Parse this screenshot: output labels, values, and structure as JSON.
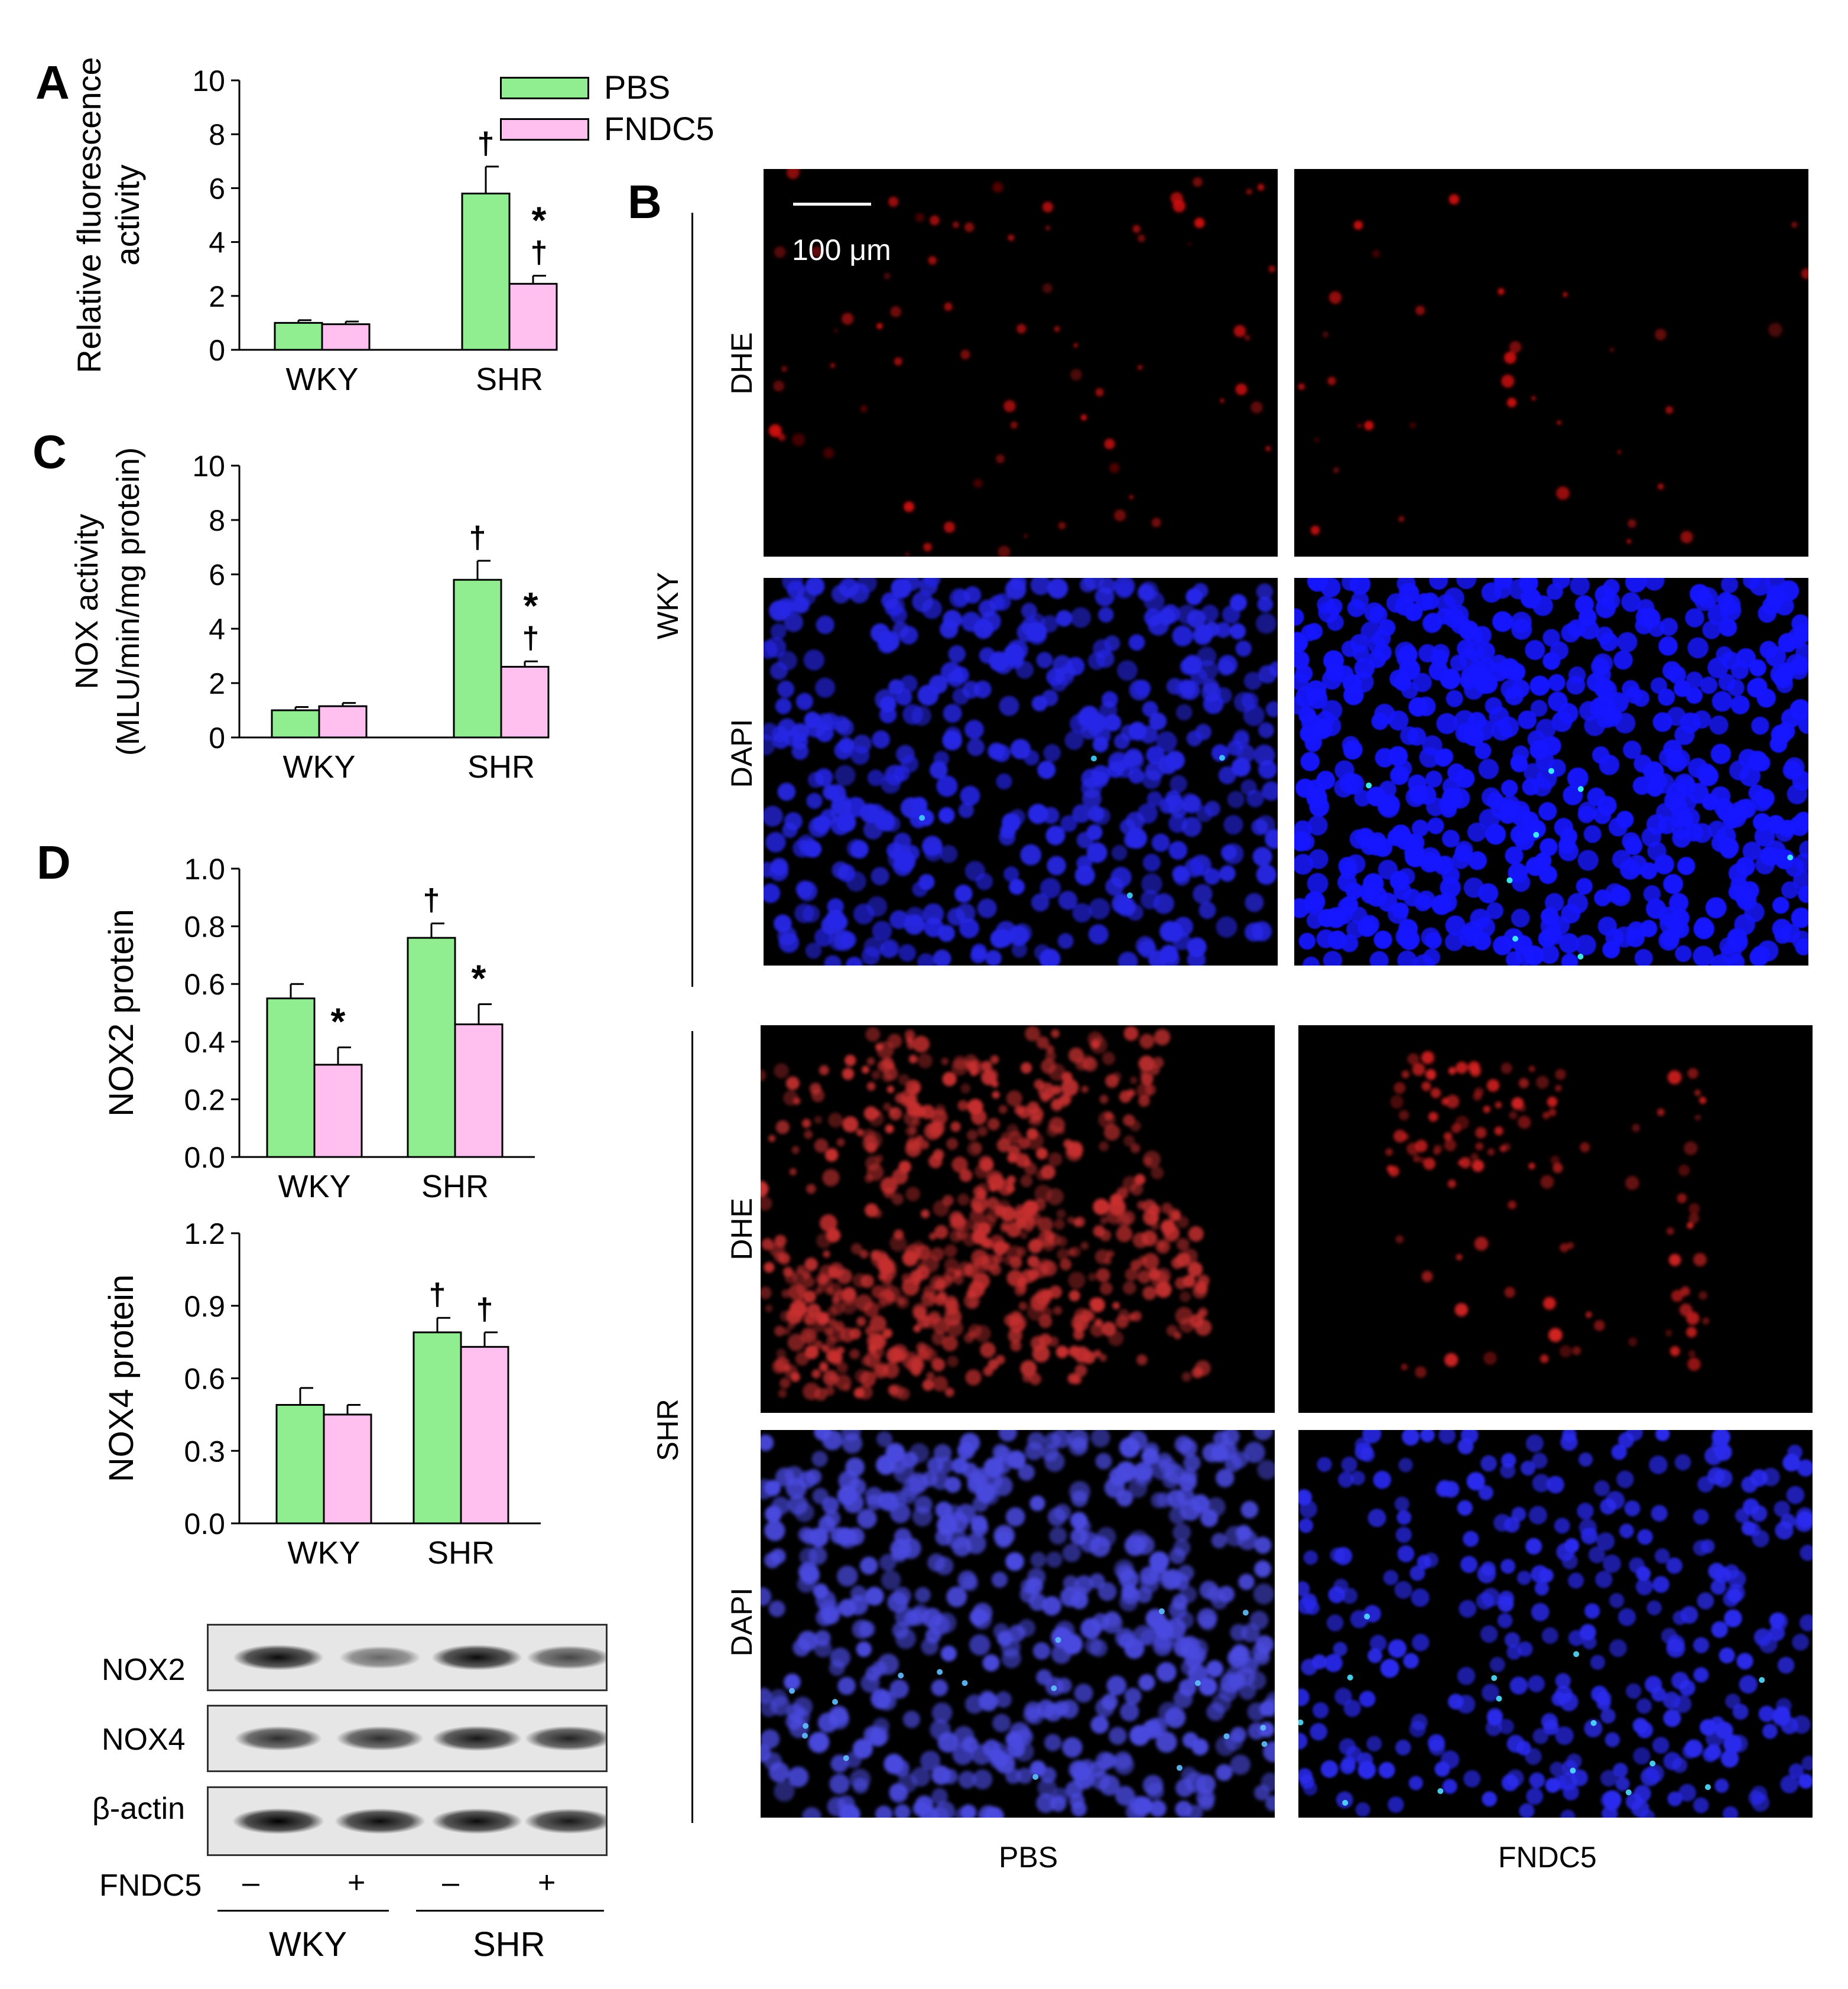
{
  "legend": {
    "items": [
      {
        "label": "PBS",
        "color": "#90ee90"
      },
      {
        "label": "FNDC5",
        "color": "#ffc0f0"
      }
    ]
  },
  "panels": {
    "A": "A",
    "B": "B",
    "C": "C",
    "D": "D"
  },
  "chart_data": [
    {
      "id": "A",
      "type": "bar",
      "categories": [
        "WKY",
        "SHR"
      ],
      "ylabel": [
        "Relative fluorescence",
        "activity"
      ],
      "ylim": [
        0,
        10
      ],
      "yticks": [
        "0",
        "2",
        "4",
        "6",
        "8",
        "10"
      ],
      "series": [
        {
          "name": "PBS",
          "values": [
            1.0,
            5.8
          ],
          "errors": [
            0.1,
            1.0
          ],
          "marks": [
            "",
            "†"
          ]
        },
        {
          "name": "FNDC5",
          "values": [
            0.95,
            2.45
          ],
          "errors": [
            0.1,
            0.3
          ],
          "marks": [
            "",
            "*†"
          ]
        }
      ]
    },
    {
      "id": "C",
      "type": "bar",
      "categories": [
        "WKY",
        "SHR"
      ],
      "ylabel": [
        "NOX activity",
        "(MLU/min/mg protein)"
      ],
      "ylim": [
        0,
        10
      ],
      "yticks": [
        "0",
        "2",
        "4",
        "6",
        "8",
        "10"
      ],
      "series": [
        {
          "name": "PBS",
          "values": [
            1.0,
            5.8
          ],
          "errors": [
            0.12,
            0.7
          ],
          "marks": [
            "",
            "†"
          ]
        },
        {
          "name": "FNDC5",
          "values": [
            1.15,
            2.6
          ],
          "errors": [
            0.12,
            0.2
          ],
          "marks": [
            "",
            "*†"
          ]
        }
      ]
    },
    {
      "id": "D1",
      "type": "bar",
      "categories": [
        "WKY",
        "SHR"
      ],
      "ylabel": [
        "NOX2 protein"
      ],
      "ylim": [
        0,
        1.0
      ],
      "yticks": [
        "0.0",
        "0.2",
        "0.4",
        "0.6",
        "0.8",
        "1.0"
      ],
      "series": [
        {
          "name": "PBS",
          "values": [
            0.55,
            0.76
          ],
          "errors": [
            0.05,
            0.05
          ],
          "marks": [
            "",
            "†"
          ]
        },
        {
          "name": "FNDC5",
          "values": [
            0.32,
            0.46
          ],
          "errors": [
            0.06,
            0.07
          ],
          "marks": [
            "*",
            "*"
          ]
        }
      ]
    },
    {
      "id": "D2",
      "type": "bar",
      "categories": [
        "WKY",
        "SHR"
      ],
      "ylabel": [
        "NOX4 protein"
      ],
      "ylim": [
        0,
        1.2
      ],
      "yticks": [
        "0.0",
        "0.3",
        "0.6",
        "0.9",
        "1.2"
      ],
      "series": [
        {
          "name": "PBS",
          "values": [
            0.49,
            0.79
          ],
          "errors": [
            0.07,
            0.06
          ],
          "marks": [
            "",
            "†"
          ]
        },
        {
          "name": "FNDC5",
          "values": [
            0.45,
            0.73
          ],
          "errors": [
            0.04,
            0.06
          ],
          "marks": [
            "",
            "†"
          ]
        }
      ]
    }
  ],
  "microscopy": {
    "scalebar": "100 μm",
    "row_groups": [
      "WKY",
      "SHR"
    ],
    "stains": [
      "DHE",
      "DAPI"
    ],
    "columns": [
      "PBS",
      "FNDC5"
    ]
  },
  "blot": {
    "bands": [
      "NOX2",
      "NOX4",
      "β-actin"
    ],
    "treatment_label": "FNDC5",
    "treatment_signs": [
      "–",
      "+",
      "–",
      "+"
    ],
    "groups": [
      "WKY",
      "SHR"
    ],
    "band_intensity": [
      [
        0.95,
        0.55,
        0.95,
        0.7
      ],
      [
        0.8,
        0.8,
        0.9,
        0.85
      ],
      [
        1.0,
        0.95,
        0.95,
        0.9
      ]
    ]
  }
}
